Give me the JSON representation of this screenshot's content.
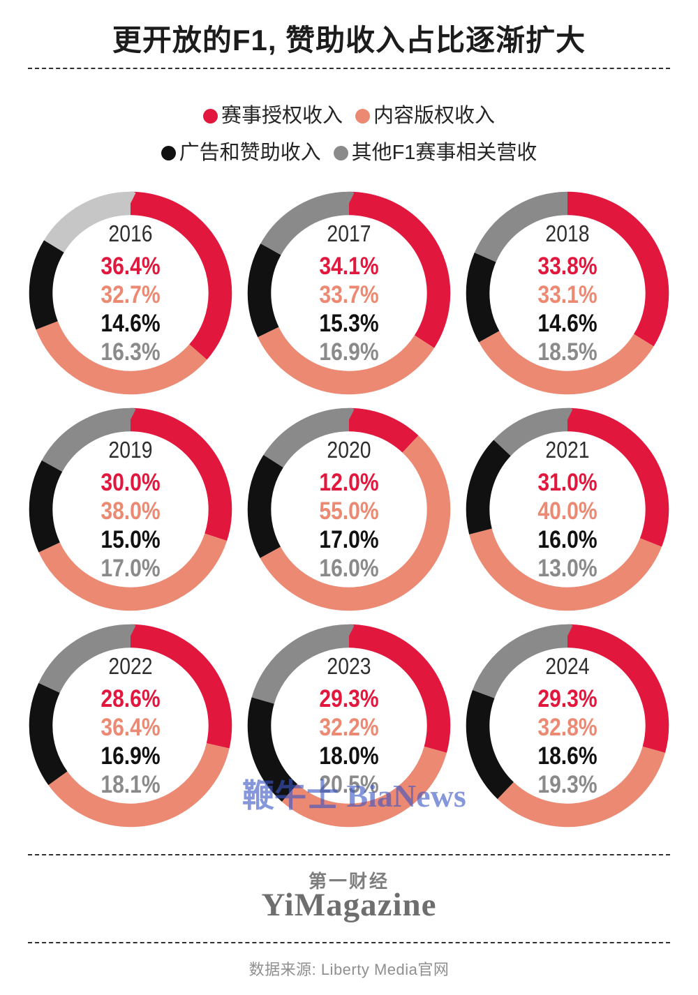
{
  "header": {
    "title": "更开放的F1, 赞助收入占比逐渐扩大"
  },
  "chart_data": {
    "type": "pie",
    "variant": "donut-grid-3x3",
    "title": "更开放的F1, 赞助收入占比逐渐扩大",
    "categories": [
      "赛事授权收入",
      "内容版权收入",
      "广告和赞助收入",
      "其他F1赛事相关营收"
    ],
    "colors": [
      "#e2173d",
      "#ec8973",
      "#111111",
      "#8a8a8a"
    ],
    "start_angle": "12-oclock",
    "direction": "clockwise",
    "value_format": "one-decimal-percent",
    "legend_position": "top",
    "series": [
      {
        "name": "2016",
        "values": [
          36.4,
          32.7,
          14.6,
          16.3
        ],
        "segment_colors": [
          "#e2173d",
          "#ec8973",
          "#111111",
          "#c6c6c6"
        ]
      },
      {
        "name": "2017",
        "values": [
          34.1,
          33.7,
          15.3,
          16.9
        ]
      },
      {
        "name": "2018",
        "values": [
          33.8,
          33.1,
          14.6,
          18.5
        ]
      },
      {
        "name": "2019",
        "values": [
          30.0,
          38.0,
          15.0,
          17.0
        ]
      },
      {
        "name": "2020",
        "values": [
          12.0,
          55.0,
          17.0,
          16.0
        ]
      },
      {
        "name": "2021",
        "values": [
          31.0,
          40.0,
          16.0,
          13.0
        ]
      },
      {
        "name": "2022",
        "values": [
          28.6,
          36.4,
          16.9,
          18.1
        ]
      },
      {
        "name": "2023",
        "values": [
          29.3,
          32.2,
          18.0,
          20.5
        ]
      },
      {
        "name": "2024",
        "values": [
          29.3,
          32.8,
          18.6,
          19.3
        ]
      }
    ]
  },
  "watermark": {
    "text": "鞭牛士 BiaNews",
    "color": "#3c56c5"
  },
  "footer": {
    "brand_cn": "第一财经",
    "brand_en": "YiMagazine",
    "source": "数据来源: Liberty Media官网"
  }
}
